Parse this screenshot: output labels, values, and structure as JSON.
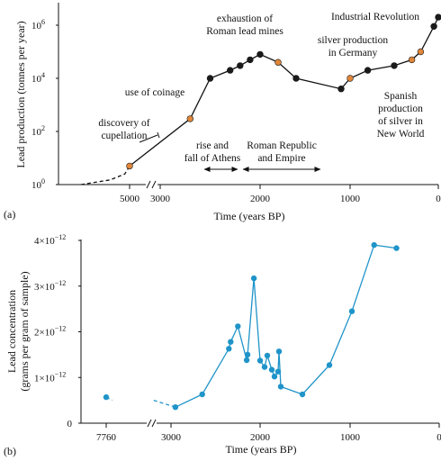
{
  "chart_data": [
    {
      "type": "line",
      "panel_label": "(a)",
      "xlabel": "Time (years BP)",
      "ylabel": "Lead production (tonnes per year)",
      "y_scale": "log",
      "ylim": [
        1,
        1000000
      ],
      "x_ticks": [
        "5000",
        "3000",
        "2000",
        "1000",
        "0"
      ],
      "y_ticks": [
        {
          "base": "10",
          "exp": "0"
        },
        {
          "base": "10",
          "exp": "2"
        },
        {
          "base": "10",
          "exp": "4"
        },
        {
          "base": "10",
          "exp": "6"
        }
      ],
      "axis_break_at": 5000,
      "series": [
        {
          "style": "dashed",
          "points": [
            [
              5500,
              1
            ],
            [
              5200,
              1.5
            ],
            [
              5050,
              2.5
            ],
            [
              5000,
              5
            ]
          ]
        },
        {
          "style": "solid",
          "points": [
            [
              5000,
              5
            ],
            [
              2700,
              300
            ],
            [
              2500,
              10000
            ],
            [
              2300,
              20000
            ],
            [
              2200,
              30000
            ],
            [
              2100,
              50000
            ],
            [
              2000,
              80000
            ],
            [
              1800,
              40000
            ],
            [
              1600,
              10000
            ],
            [
              1100,
              4000
            ],
            [
              1000,
              10000
            ],
            [
              800,
              20000
            ],
            [
              500,
              30000
            ],
            [
              300,
              50000
            ],
            [
              200,
              100000
            ],
            [
              50,
              900000
            ],
            [
              0,
              2000000
            ]
          ],
          "highlighted": [
            [
              5000,
              5
            ],
            [
              2700,
              300
            ],
            [
              1800,
              40000
            ],
            [
              1000,
              10000
            ],
            [
              300,
              50000
            ],
            [
              200,
              100000
            ]
          ]
        }
      ],
      "annotations": [
        {
          "text": [
            "discovery of",
            "cupellation"
          ]
        },
        {
          "text": [
            "use of coinage"
          ]
        },
        {
          "text": [
            "exhaustion of",
            "Roman lead mines"
          ]
        },
        {
          "text": [
            "Industrial Revolution"
          ]
        },
        {
          "text": [
            "silver production",
            "in Germany"
          ]
        },
        {
          "text": [
            "Spanish",
            "production",
            "of silver in",
            "New World"
          ]
        },
        {
          "text": [
            "rise and",
            "fall of Athens"
          ]
        },
        {
          "text": [
            "Roman Republic",
            "and Empire"
          ]
        }
      ]
    },
    {
      "type": "line",
      "panel_label": "(b)",
      "xlabel": "Time (years BP)",
      "ylabel": [
        "Lead concentration",
        "(grams per gram of sample)"
      ],
      "ylim": [
        0,
        4e-12
      ],
      "x_ticks": [
        "7760",
        "3000",
        "2000",
        "1000",
        "0"
      ],
      "y_ticks": [
        {
          "mant": "0",
          "exp": ""
        },
        {
          "mant": "1",
          "exp": "−12"
        },
        {
          "mant": "2",
          "exp": "−12"
        },
        {
          "mant": "3",
          "exp": "−12"
        },
        {
          "mant": "4",
          "exp": "−12"
        }
      ],
      "axis_break_at": 3200,
      "series": [
        {
          "style": "dashed",
          "points": [
            [
              7760,
              5.7e-13
            ],
            [
              7200,
              5e-13
            ]
          ]
        },
        {
          "style": "dashed",
          "points": [
            [
              3300,
              5e-13
            ],
            [
              2950,
              3.5e-13
            ]
          ]
        },
        {
          "style": "solid",
          "points": [
            [
              2950,
              3.5e-13
            ],
            [
              2650,
              6.3e-13
            ],
            [
              2350,
              1.63e-12
            ],
            [
              2330,
              1.78e-12
            ],
            [
              2250,
              2.12e-12
            ],
            [
              2150,
              1.38e-12
            ],
            [
              2140,
              1.5e-12
            ],
            [
              2070,
              3.17e-12
            ],
            [
              2000,
              1.37e-12
            ],
            [
              1950,
              1.23e-12
            ],
            [
              1920,
              1.48e-12
            ],
            [
              1870,
              1.17e-12
            ],
            [
              1840,
              1.02e-12
            ],
            [
              1800,
              1.13e-12
            ],
            [
              1790,
              1.57e-12
            ],
            [
              1770,
              8e-13
            ],
            [
              1530,
              6.3e-13
            ],
            [
              1230,
              1.27e-12
            ],
            [
              980,
              2.45e-12
            ],
            [
              730,
              3.9e-12
            ],
            [
              480,
              3.83e-12
            ]
          ]
        }
      ]
    }
  ]
}
